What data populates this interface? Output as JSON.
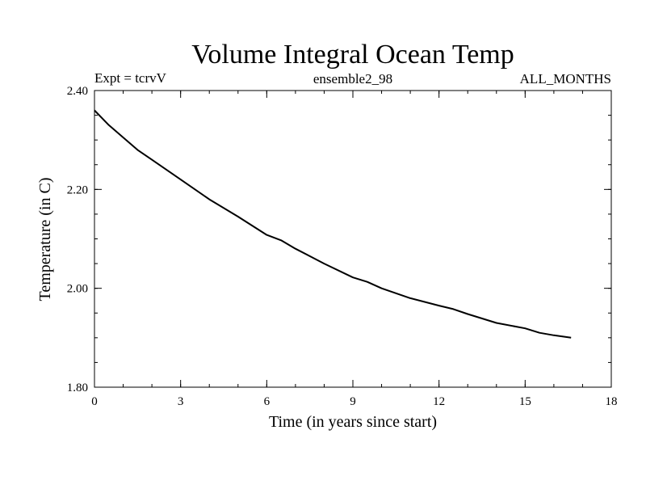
{
  "chart_data": {
    "type": "line",
    "title": "Volume Integral Ocean Temp",
    "subtitle_left": "Expt = tcrvV",
    "subtitle_center": "ensemble2_98",
    "subtitle_right": "ALL_MONTHS",
    "xlabel": "Time (in years since start)",
    "ylabel": "Temperature (in C)",
    "xlim": [
      0,
      18
    ],
    "ylim": [
      1.8,
      2.4
    ],
    "xticks": [
      0,
      3,
      6,
      9,
      12,
      15,
      18
    ],
    "xtick_labels": [
      "0",
      "3",
      "6",
      "9",
      "12",
      "15",
      "18"
    ],
    "yticks": [
      1.8,
      2.0,
      2.2,
      2.4
    ],
    "ytick_labels": [
      "1.80",
      "2.00",
      "2.20",
      "2.40"
    ],
    "x_minor_step": 1,
    "y_minor_step": 0.05,
    "grid": false,
    "line_color": "#000000",
    "series": [
      {
        "x": [
          0,
          0.5,
          1,
          1.5,
          2,
          3,
          4,
          5,
          6,
          6.5,
          7,
          8,
          9,
          9.5,
          10,
          11,
          12,
          12.5,
          13,
          14,
          15,
          15.5,
          16,
          16.6
        ],
        "values": [
          2.36,
          2.33,
          2.305,
          2.28,
          2.26,
          2.22,
          2.18,
          2.145,
          2.108,
          2.097,
          2.08,
          2.05,
          2.022,
          2.013,
          2.0,
          1.98,
          1.965,
          1.958,
          1.948,
          1.93,
          1.919,
          1.91,
          1.905,
          1.9
        ]
      }
    ]
  }
}
